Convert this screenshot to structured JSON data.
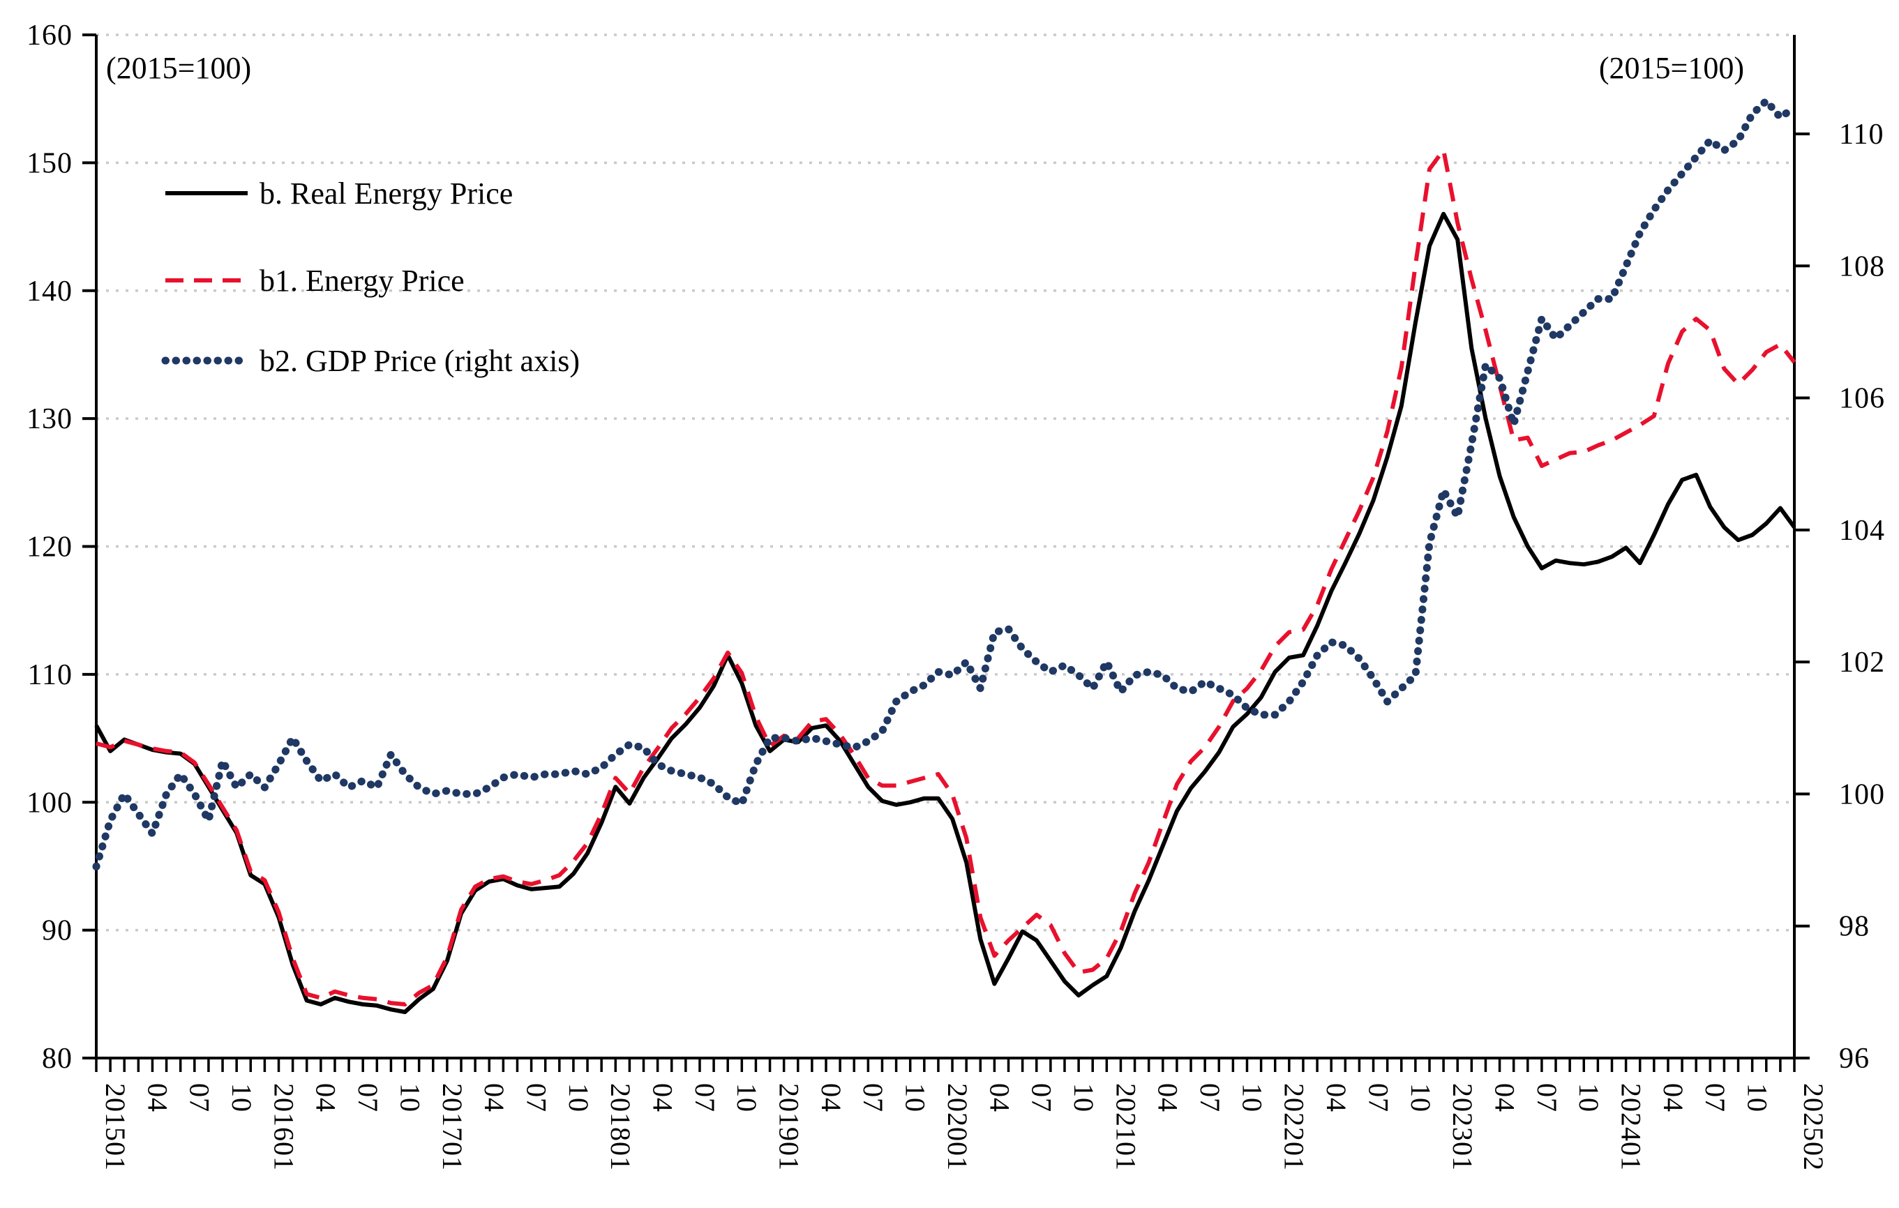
{
  "annotations": {
    "left_unit": "(2015=100)",
    "right_unit": "(2015=100)"
  },
  "legend": [
    {
      "label": "b. Real Energy Price",
      "style": "solid",
      "color": "#000000"
    },
    {
      "label": "b1. Energy Price",
      "style": "dashed",
      "color": "#e8112d"
    },
    {
      "label": "b2. GDP Price (right axis)",
      "style": "dotted",
      "color": "#1f3864"
    }
  ],
  "colors": {
    "real_energy": "#000000",
    "energy": "#e8112d",
    "gdp": "#1f3864",
    "gridline": "#c9c9c9",
    "axis": "#000000"
  },
  "chart_data": {
    "type": "line",
    "title": "",
    "xlabel": "",
    "ylabel_left": "(2015=100)",
    "ylabel_right": "(2015=100)",
    "ylim_left": [
      80,
      160
    ],
    "y_left_ticks": [
      80,
      90,
      100,
      110,
      120,
      130,
      140,
      150,
      160
    ],
    "ylim_right": [
      96,
      111.5
    ],
    "y_right_ticks": [
      96,
      98,
      100,
      102,
      104,
      106,
      108,
      110
    ],
    "grid": "horizontal-dotted",
    "legend_position": "inside-top-left",
    "months": [
      "201501",
      "201502",
      "201503",
      "201504",
      "201505",
      "201506",
      "201507",
      "201508",
      "201509",
      "201510",
      "201511",
      "201512",
      "201601",
      "201602",
      "201603",
      "201604",
      "201605",
      "201606",
      "201607",
      "201608",
      "201609",
      "201610",
      "201611",
      "201612",
      "201701",
      "201702",
      "201703",
      "201704",
      "201705",
      "201706",
      "201707",
      "201708",
      "201709",
      "201710",
      "201711",
      "201712",
      "201801",
      "201802",
      "201803",
      "201804",
      "201805",
      "201806",
      "201807",
      "201808",
      "201809",
      "201810",
      "201811",
      "201812",
      "201901",
      "201902",
      "201903",
      "201904",
      "201905",
      "201906",
      "201907",
      "201908",
      "201909",
      "201910",
      "201911",
      "201912",
      "202001",
      "202002",
      "202003",
      "202004",
      "202005",
      "202006",
      "202007",
      "202008",
      "202009",
      "202010",
      "202011",
      "202012",
      "202101",
      "202102",
      "202103",
      "202104",
      "202105",
      "202106",
      "202107",
      "202108",
      "202109",
      "202110",
      "202111",
      "202112",
      "202201",
      "202202",
      "202203",
      "202204",
      "202205",
      "202206",
      "202207",
      "202208",
      "202209",
      "202210",
      "202211",
      "202212",
      "202301",
      "202302",
      "202303",
      "202304",
      "202305",
      "202306",
      "202307",
      "202308",
      "202309",
      "202310",
      "202311",
      "202312",
      "202401",
      "202402",
      "202403",
      "202404",
      "202405",
      "202406",
      "202407",
      "202408",
      "202409",
      "202410",
      "202411",
      "202412",
      "202501",
      "202502"
    ],
    "x_tick_labels": [
      {
        "m": 0,
        "label": "201501"
      },
      {
        "m": 3,
        "label": "04"
      },
      {
        "m": 6,
        "label": "07"
      },
      {
        "m": 9,
        "label": "10"
      },
      {
        "m": 12,
        "label": "201601"
      },
      {
        "m": 15,
        "label": "04"
      },
      {
        "m": 18,
        "label": "07"
      },
      {
        "m": 21,
        "label": "10"
      },
      {
        "m": 24,
        "label": "201701"
      },
      {
        "m": 27,
        "label": "04"
      },
      {
        "m": 30,
        "label": "07"
      },
      {
        "m": 33,
        "label": "10"
      },
      {
        "m": 36,
        "label": "201801"
      },
      {
        "m": 39,
        "label": "04"
      },
      {
        "m": 42,
        "label": "07"
      },
      {
        "m": 45,
        "label": "10"
      },
      {
        "m": 48,
        "label": "201901"
      },
      {
        "m": 51,
        "label": "04"
      },
      {
        "m": 54,
        "label": "07"
      },
      {
        "m": 57,
        "label": "10"
      },
      {
        "m": 60,
        "label": "202001"
      },
      {
        "m": 63,
        "label": "04"
      },
      {
        "m": 66,
        "label": "07"
      },
      {
        "m": 69,
        "label": "10"
      },
      {
        "m": 72,
        "label": "202101"
      },
      {
        "m": 75,
        "label": "04"
      },
      {
        "m": 78,
        "label": "07"
      },
      {
        "m": 81,
        "label": "10"
      },
      {
        "m": 84,
        "label": "202201"
      },
      {
        "m": 87,
        "label": "04"
      },
      {
        "m": 90,
        "label": "07"
      },
      {
        "m": 93,
        "label": "10"
      },
      {
        "m": 96,
        "label": "202301"
      },
      {
        "m": 99,
        "label": "04"
      },
      {
        "m": 102,
        "label": "07"
      },
      {
        "m": 105,
        "label": "10"
      },
      {
        "m": 108,
        "label": "202401"
      },
      {
        "m": 111,
        "label": "04"
      },
      {
        "m": 114,
        "label": "07"
      },
      {
        "m": 117,
        "label": "10"
      },
      {
        "m": 121,
        "label": "202502"
      }
    ],
    "series": [
      {
        "name": "b. Real Energy Price",
        "axis": "left",
        "style": "solid",
        "color": "#000000",
        "values": [
          106.0,
          104.0,
          104.9,
          104.5,
          104.1,
          103.9,
          103.8,
          103.0,
          101.2,
          99.4,
          97.6,
          94.3,
          93.6,
          91.0,
          87.3,
          84.5,
          84.2,
          84.7,
          84.4,
          84.2,
          84.1,
          83.8,
          83.6,
          84.6,
          85.4,
          87.6,
          91.3,
          93.1,
          93.8,
          94.0,
          93.5,
          93.2,
          93.3,
          93.4,
          94.4,
          96.0,
          98.4,
          101.2,
          99.9,
          101.9,
          103.4,
          105.0,
          106.1,
          107.4,
          109.1,
          111.5,
          109.3,
          106.0,
          104.0,
          104.9,
          104.7,
          105.8,
          106.0,
          104.8,
          103.0,
          101.2,
          100.1,
          99.8,
          100.0,
          100.3,
          100.3,
          98.7,
          95.3,
          89.3,
          85.8,
          87.8,
          89.9,
          89.2,
          87.6,
          86.0,
          84.9,
          85.7,
          86.4,
          88.6,
          91.5,
          93.9,
          96.6,
          99.3,
          101.1,
          102.4,
          103.9,
          105.9,
          106.9,
          108.2,
          110.2,
          111.3,
          111.5,
          113.8,
          116.5,
          118.7,
          121.0,
          123.6,
          127.0,
          131.0,
          137.5,
          143.5,
          146.0,
          144.0,
          135.5,
          130.0,
          125.5,
          122.3,
          120.0,
          118.3,
          118.9,
          118.7,
          118.6,
          118.8,
          119.2,
          119.9,
          118.7,
          120.9,
          123.3,
          125.2,
          125.6,
          123.1,
          121.5,
          120.5,
          120.9,
          121.8,
          123.0,
          121.5
        ]
      },
      {
        "name": "b1. Energy Price",
        "axis": "left",
        "style": "dashed",
        "color": "#e8112d",
        "values": [
          104.6,
          104.3,
          104.8,
          104.5,
          104.2,
          104.0,
          103.9,
          103.1,
          101.4,
          99.6,
          97.8,
          94.6,
          93.9,
          91.4,
          87.8,
          85.0,
          84.7,
          85.2,
          84.9,
          84.7,
          84.6,
          84.3,
          84.2,
          85.1,
          85.7,
          87.9,
          91.6,
          93.4,
          94.0,
          94.2,
          93.8,
          93.6,
          93.9,
          94.3,
          95.4,
          96.8,
          99.1,
          101.9,
          100.7,
          102.7,
          104.2,
          105.8,
          106.9,
          108.2,
          109.7,
          111.7,
          110.1,
          106.7,
          104.4,
          105.2,
          105.0,
          106.3,
          106.5,
          105.3,
          103.7,
          101.9,
          101.3,
          101.3,
          101.6,
          101.9,
          102.2,
          100.6,
          97.2,
          91.0,
          88.0,
          89.2,
          90.2,
          91.2,
          90.4,
          88.2,
          86.7,
          86.9,
          87.8,
          89.9,
          92.9,
          95.3,
          98.4,
          101.4,
          103.2,
          104.3,
          105.9,
          107.9,
          108.9,
          110.3,
          112.2,
          113.3,
          113.5,
          115.4,
          118.2,
          120.5,
          122.8,
          125.4,
          129.0,
          134.0,
          142.0,
          149.5,
          151.0,
          145.3,
          140.9,
          136.9,
          132.6,
          128.3,
          128.5,
          126.3,
          126.8,
          127.3,
          127.4,
          127.9,
          128.3,
          128.9,
          129.5,
          130.2,
          134.3,
          136.8,
          137.8,
          136.9,
          133.9,
          132.7,
          133.8,
          135.2,
          135.8,
          134.4
        ]
      },
      {
        "name": "b2. GDP Price (right axis)",
        "axis": "right",
        "style": "dotted",
        "color": "#1f3864",
        "values": [
          98.9,
          99.6,
          100.0,
          99.7,
          99.4,
          100.0,
          100.3,
          100.0,
          99.6,
          100.5,
          100.1,
          100.3,
          100.1,
          100.45,
          100.85,
          100.5,
          100.2,
          100.3,
          100.1,
          100.2,
          100.1,
          100.6,
          100.3,
          100.1,
          100.0,
          100.05,
          100.0,
          100.0,
          100.1,
          100.25,
          100.3,
          100.25,
          100.3,
          100.3,
          100.35,
          100.3,
          100.4,
          100.6,
          100.75,
          100.7,
          100.45,
          100.35,
          100.3,
          100.25,
          100.15,
          99.95,
          99.85,
          100.45,
          100.85,
          100.85,
          100.8,
          100.85,
          100.8,
          100.75,
          100.7,
          100.8,
          100.95,
          101.4,
          101.55,
          101.65,
          101.85,
          101.8,
          102.0,
          101.6,
          102.45,
          102.5,
          102.2,
          102.0,
          101.85,
          101.95,
          101.8,
          101.6,
          102.0,
          101.55,
          101.8,
          101.85,
          101.8,
          101.6,
          101.55,
          101.7,
          101.6,
          101.5,
          101.3,
          101.2,
          101.2,
          101.4,
          101.7,
          102.1,
          102.3,
          102.25,
          102.05,
          101.75,
          101.4,
          101.6,
          101.8,
          103.8,
          104.6,
          104.2,
          105.3,
          106.5,
          106.3,
          105.6,
          106.4,
          107.2,
          106.9,
          107.1,
          107.3,
          107.5,
          107.5,
          108.0,
          108.5,
          108.85,
          109.15,
          109.4,
          109.65,
          109.9,
          109.75,
          109.9,
          110.3,
          110.5,
          110.25,
          110.4
        ]
      }
    ]
  }
}
